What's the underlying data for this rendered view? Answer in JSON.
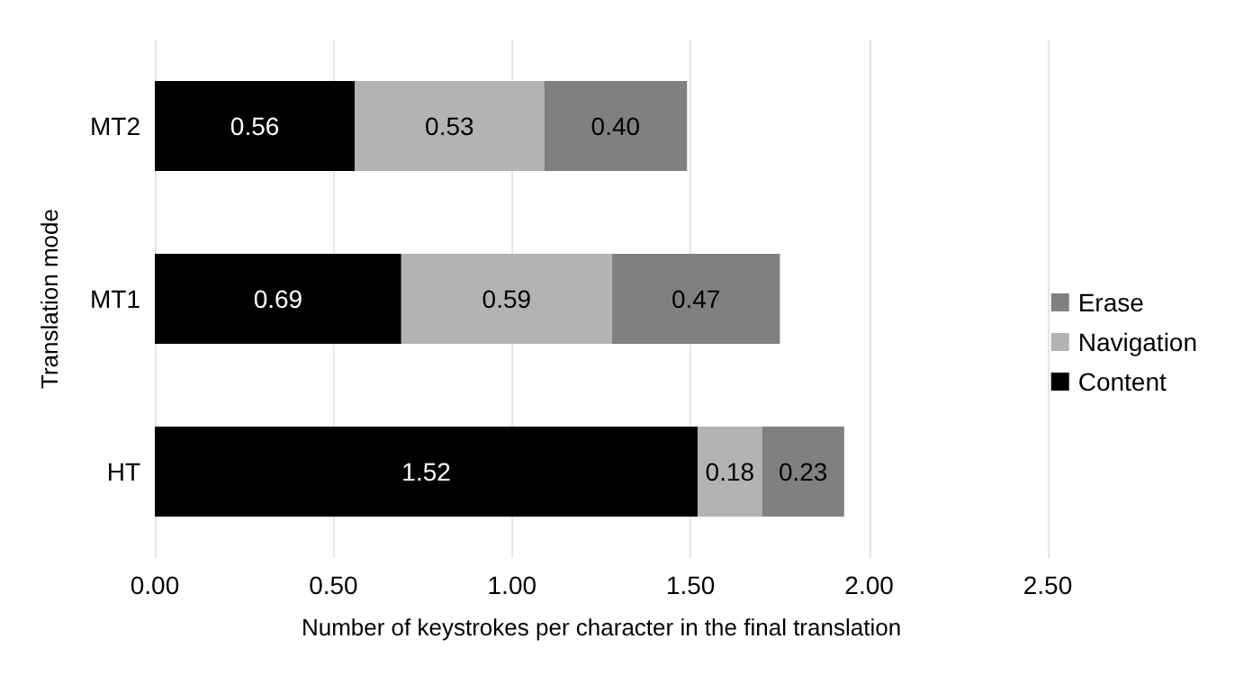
{
  "chart_data": {
    "type": "bar",
    "orientation": "horizontal",
    "stacked": true,
    "xlabel": "Number of keystrokes per character in the final translation",
    "ylabel": "Translation mode",
    "categories": [
      "MT2",
      "MT1",
      "HT"
    ],
    "series": [
      {
        "name": "Content",
        "color": "#000000",
        "values": [
          0.56,
          0.69,
          1.52
        ],
        "value_labels": [
          "0.56",
          "0.69",
          "1.52"
        ]
      },
      {
        "name": "Navigation",
        "color": "#b3b3b3",
        "values": [
          0.53,
          0.59,
          0.18
        ],
        "value_labels": [
          "0.53",
          "0.59",
          "0.18"
        ]
      },
      {
        "name": "Erase",
        "color": "#808080",
        "values": [
          0.4,
          0.47,
          0.23
        ],
        "value_labels": [
          "0.40",
          "0.47",
          "0.23"
        ]
      }
    ],
    "xlim": [
      0,
      2.5
    ],
    "xticks": [
      {
        "value": 0,
        "label": "0.00"
      },
      {
        "value": 0.5,
        "label": "0.50"
      },
      {
        "value": 1,
        "label": "1.00"
      },
      {
        "value": 1.5,
        "label": "1.50"
      },
      {
        "value": 2,
        "label": "2.00"
      },
      {
        "value": 2.5,
        "label": "2.50"
      }
    ],
    "grid": "x",
    "legend": "right"
  }
}
